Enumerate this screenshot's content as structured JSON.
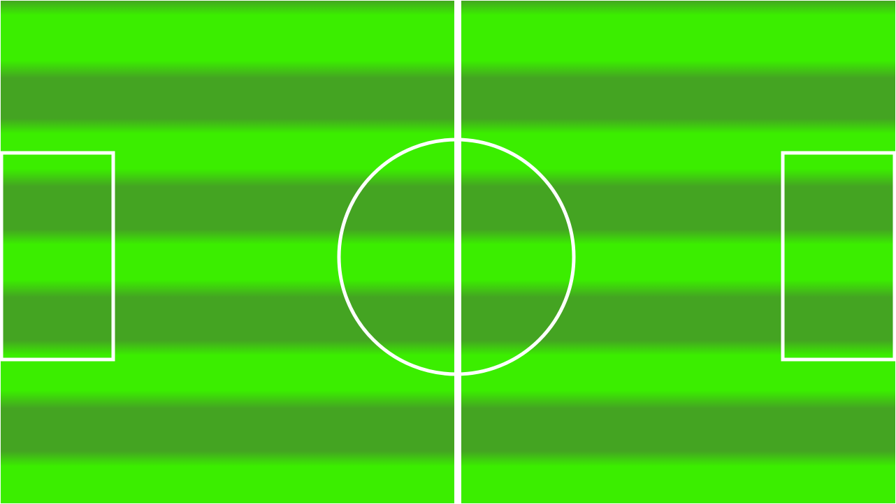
{
  "scene": {
    "kind": "soccer-pitch",
    "stripe_count": 8
  },
  "colors": {
    "grass_light": "#3bee00",
    "grass_dark": "#44a422",
    "line": "#ffffff",
    "border": "#ffffff"
  }
}
